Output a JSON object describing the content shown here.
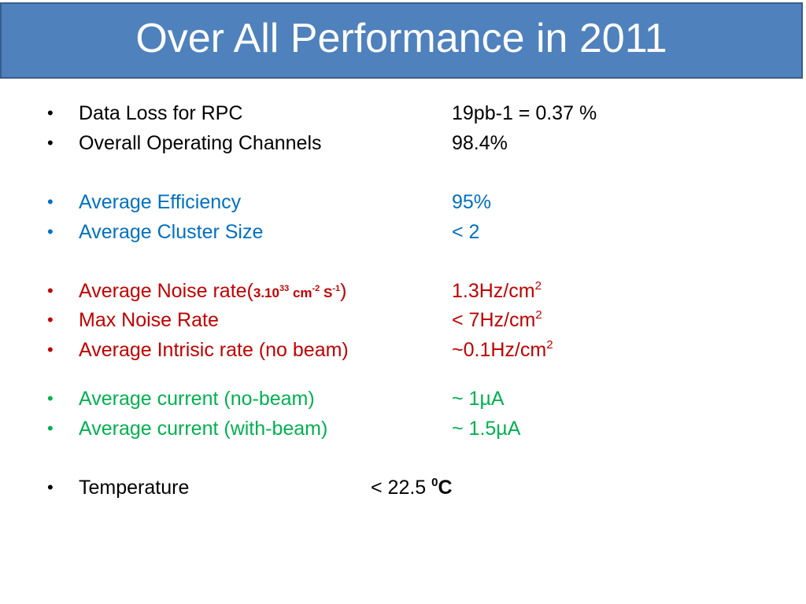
{
  "title": "Over All Performance in 2011",
  "colors": {
    "title_bar": "#4f81bd",
    "title_border": "#385d8a",
    "black": "#000000",
    "blue": "#0070c0",
    "red": "#c00000",
    "green": "#00b050"
  },
  "bullet_glyph": "•",
  "rows": {
    "data_loss": {
      "label": "Data Loss for RPC",
      "value": "19pb-1  = 0.37 %"
    },
    "channels": {
      "label": "Overall Operating Channels",
      "value": "98.4%"
    },
    "efficiency": {
      "label": "Average Efficiency",
      "value": "95%"
    },
    "cluster": {
      "label": "Average Cluster Size",
      "value": "< 2"
    },
    "noise": {
      "label_prefix": "Average Noise rate(",
      "lumi_a": "3.10",
      "lumi_exp": "33",
      "lumi_b": " cm",
      "lumi_exp2": "-2",
      "lumi_c": " S",
      "lumi_exp3": "-1",
      "label_suffix": ")",
      "value": "1.3Hz/cm",
      "value_exp": "2"
    },
    "max_noise": {
      "label": "Max Noise Rate",
      "value": "< 7Hz/cm",
      "value_exp": "2"
    },
    "intrinsic": {
      "label": "Average Intrisic rate (no beam)",
      "value": "~0.1Hz/cm",
      "value_exp": "2"
    },
    "current_nobeam": {
      "label": "Average current (no-beam)",
      "value": "~ 1µA"
    },
    "current_beam": {
      "label": "Average current (with-beam)",
      "value": "~ 1.5µA"
    },
    "temperature": {
      "label": "Temperature",
      "value": "< 22.5 ",
      "value_exp": "0",
      "unit": "C"
    }
  }
}
